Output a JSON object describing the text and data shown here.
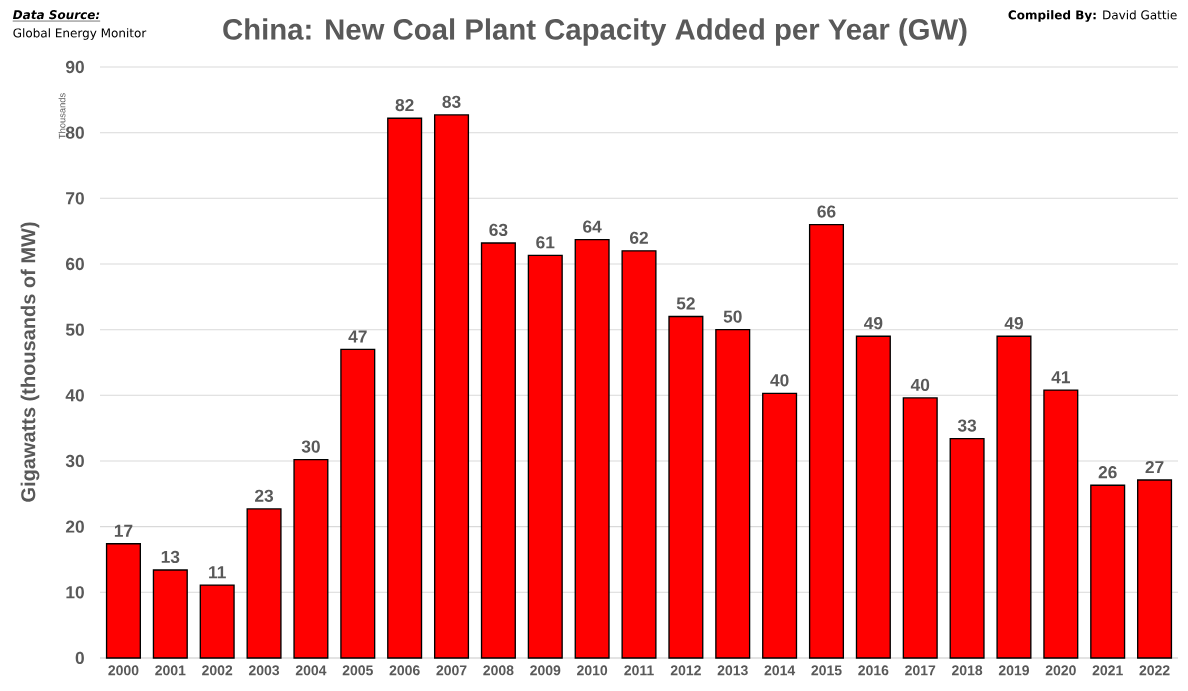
{
  "chart_data": {
    "type": "bar",
    "title": "China: New Coal Plant Capacity Added per Year (GW)",
    "ylabel": "Gigawatts (thousands of MW)",
    "annotations": [
      "Data Source:",
      "Global Energy Monitor",
      "**Compiled By:** David Gattie",
      "Thousands"
    ],
    "categories": [
      "2000",
      "2001",
      "2002",
      "2003",
      "2004",
      "2005",
      "2006",
      "2007",
      "2008",
      "2009",
      "2010",
      "2011",
      "2012",
      "2013",
      "2014",
      "2015",
      "2016",
      "2017",
      "2018",
      "2019",
      "2020",
      "2021",
      "2022"
    ],
    "values": [
      17.4,
      13.4,
      11.1,
      22.7,
      30.2,
      47,
      82.2,
      82.7,
      63.2,
      61.3,
      63.7,
      62,
      52,
      50,
      40.3,
      66,
      49,
      39.6,
      33.4,
      49,
      40.8,
      26.3,
      27.1
    ],
    "value_labels": [
      "17",
      "13",
      "11",
      "23",
      "30",
      "47",
      "82",
      "83",
      "63",
      "61",
      "64",
      "62",
      "52",
      "50",
      "40",
      "66",
      "49",
      "40",
      "33",
      "49",
      "41",
      "26",
      "27"
    ],
    "color": "#ff0000",
    "ylim": [
      0,
      90
    ],
    "yticks": [
      0,
      10,
      20,
      30,
      40,
      50,
      60,
      70,
      80,
      90
    ],
    "grid": "y"
  }
}
